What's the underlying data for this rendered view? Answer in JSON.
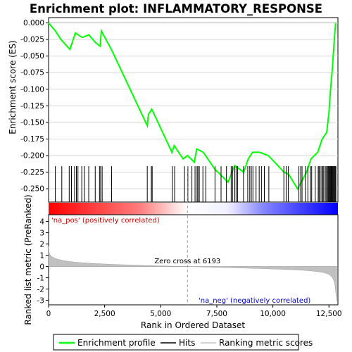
{
  "chart_data": {
    "type": "line",
    "title": "Enrichment plot: INFLAMMATORY_RESPONSE",
    "xlabel": "Rank in Ordered Dataset",
    "es_panel": {
      "ylabel": "Enrichment score (ES)",
      "xlim": [
        0,
        12900
      ],
      "ylim": [
        -0.27,
        0.008
      ],
      "yticks": [
        0.0,
        -0.025,
        -0.05,
        -0.075,
        -0.1,
        -0.125,
        -0.15,
        -0.175,
        -0.2,
        -0.225,
        -0.25
      ],
      "ytick_labels": [
        "0.000",
        "-0.025",
        "-0.050",
        "-0.075",
        "-0.100",
        "-0.125",
        "-0.150",
        "-0.175",
        "-0.200",
        "-0.225",
        "-0.250"
      ],
      "grid": true,
      "color": "#00ff00",
      "series": [
        {
          "x": [
            0,
            300,
            550,
            950,
            1200,
            1500,
            1800,
            2100,
            2300,
            2350,
            2800,
            4400,
            4450,
            4600,
            5500,
            5600,
            6000,
            6200,
            6500,
            6600,
            6900,
            7400,
            8000,
            8300,
            8700,
            8900,
            9100,
            9400,
            9800,
            10500,
            10700,
            11100,
            11500,
            11700,
            12000,
            12200,
            12400,
            12500,
            12550,
            12650,
            12700,
            12750,
            12800
          ],
          "y": [
            0.0,
            -0.012,
            -0.025,
            -0.04,
            -0.015,
            -0.022,
            -0.018,
            -0.03,
            -0.035,
            -0.012,
            -0.04,
            -0.155,
            -0.138,
            -0.13,
            -0.195,
            -0.185,
            -0.205,
            -0.2,
            -0.21,
            -0.19,
            -0.195,
            -0.22,
            -0.24,
            -0.215,
            -0.225,
            -0.205,
            -0.195,
            -0.195,
            -0.2,
            -0.225,
            -0.228,
            -0.25,
            -0.225,
            -0.205,
            -0.195,
            -0.175,
            -0.165,
            -0.135,
            -0.11,
            -0.07,
            -0.045,
            -0.02,
            0.0
          ]
        }
      ]
    },
    "hits_panel": {
      "hit_color": "#000000",
      "hit_ranks": [
        300,
        590,
        920,
        1020,
        1160,
        1240,
        1310,
        1480,
        1600,
        1790,
        2080,
        2270,
        2320,
        2390,
        2810,
        4400,
        4580,
        4620,
        5520,
        5620,
        6060,
        6210,
        6390,
        6530,
        6620,
        6660,
        6720,
        6880,
        7010,
        7420,
        7690,
        7930,
        8140,
        8200,
        8300,
        8360,
        8430,
        8690,
        8880,
        8970,
        9040,
        9110,
        9250,
        9390,
        9490,
        9620,
        9820,
        10490,
        10600,
        10690,
        11160,
        11240,
        11300,
        11450,
        11560,
        11680,
        11730,
        11890,
        12020,
        12060,
        12110,
        12180,
        12230,
        12270,
        12340,
        12390,
        12440,
        12470,
        12500,
        12530,
        12560,
        12590,
        12620,
        12640,
        12660,
        12690,
        12720,
        12750,
        12780,
        12810
      ]
    },
    "gradient_bar": {
      "low_color": "#ff0000",
      "high_color": "#0000ff",
      "mid_color": "#ffffff"
    },
    "metric_panel": {
      "ylabel": "Ranked list metric (PreRanked)",
      "ylim": [
        -3.4,
        4.6
      ],
      "yticks": [
        4,
        3,
        2,
        1,
        0,
        -1,
        -2,
        -3
      ],
      "ytick_labels": [
        "4",
        "3",
        "2",
        "1",
        "0",
        "-1",
        "-2",
        "-3"
      ],
      "fill_color": "#c0c0c0",
      "series": [
        {
          "x": [
            0,
            20,
            50,
            100,
            200,
            300,
            500,
            800,
            1200,
            2000,
            3000,
            4500,
            6193,
            8000,
            9500,
            10500,
            11500,
            12000,
            12300,
            12500,
            12650,
            12750,
            12800,
            12850
          ],
          "y": [
            1.8,
            1.35,
            1.1,
            0.95,
            0.82,
            0.72,
            0.6,
            0.48,
            0.38,
            0.27,
            0.18,
            0.08,
            0.0,
            -0.1,
            -0.18,
            -0.25,
            -0.35,
            -0.45,
            -0.55,
            -0.7,
            -0.95,
            -1.4,
            -2.2,
            -3.1
          ]
        }
      ],
      "zero_cross_rank": 6193,
      "zero_cross_label": "Zero cross at 6193",
      "pos_label": "'na_pos' (positively correlated)",
      "neg_label": "'na_neg' (negatively correlated)",
      "pos_color": "#cc0000",
      "neg_color": "#0000cc"
    },
    "xticks": [
      0,
      2500,
      5000,
      7500,
      10000,
      12500
    ],
    "xtick_labels": [
      "0",
      "2,500",
      "5,000",
      "7,500",
      "10,000",
      "12,500"
    ],
    "legend": {
      "placement": "bottom",
      "entries": [
        {
          "label": "Enrichment profile",
          "color": "#00ff00"
        },
        {
          "label": "Hits",
          "color": "#000000"
        },
        {
          "label": "Ranking metric scores",
          "color": "#c0c0c0"
        }
      ]
    }
  }
}
